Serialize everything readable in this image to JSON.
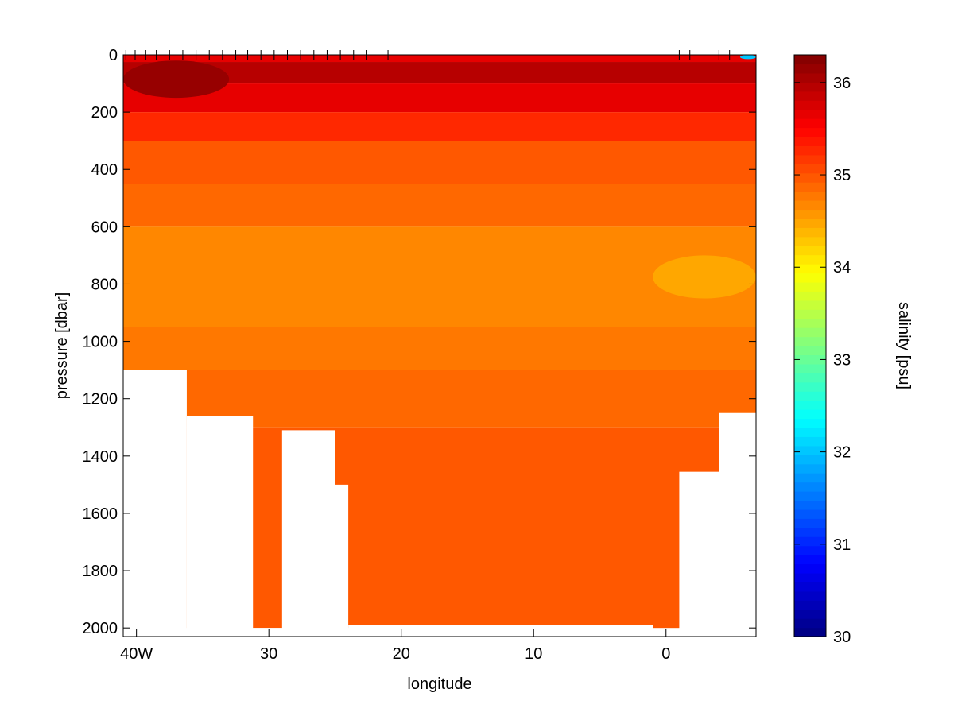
{
  "chart_data": {
    "type": "heatmap",
    "xlabel": "longitude",
    "ylabel": "pressure [dbar]",
    "colorbar_label": "salinity [psu]",
    "x_axis": {
      "range_lon_east": [
        -41.0,
        6.8
      ],
      "ticks": [
        {
          "value": -40,
          "label": "40W"
        },
        {
          "value": -30,
          "label": "30"
        },
        {
          "value": -20,
          "label": "20"
        },
        {
          "value": -10,
          "label": "10"
        },
        {
          "value": 0,
          "label": "0"
        }
      ]
    },
    "y_axis": {
      "range": [
        0,
        2030
      ],
      "reversed": true,
      "ticks": [
        {
          "value": 0,
          "label": "0"
        },
        {
          "value": 200,
          "label": "200"
        },
        {
          "value": 400,
          "label": "400"
        },
        {
          "value": 600,
          "label": "600"
        },
        {
          "value": 800,
          "label": "800"
        },
        {
          "value": 1000,
          "label": "1000"
        },
        {
          "value": 1200,
          "label": "1200"
        },
        {
          "value": 1400,
          "label": "1400"
        },
        {
          "value": 1600,
          "label": "1600"
        },
        {
          "value": 1800,
          "label": "1800"
        },
        {
          "value": 2000,
          "label": "2000"
        }
      ]
    },
    "colorbar": {
      "range": [
        30,
        36.3
      ],
      "colormap": "jet",
      "levels": 64,
      "ticks": [
        {
          "value": 30,
          "label": "30"
        },
        {
          "value": 31,
          "label": "31"
        },
        {
          "value": 32,
          "label": "32"
        },
        {
          "value": 33,
          "label": "33"
        },
        {
          "value": 34,
          "label": "34"
        },
        {
          "value": 35,
          "label": "35"
        },
        {
          "value": 36,
          "label": "36"
        }
      ]
    },
    "station_longitudes": [
      -40.8,
      -40.1,
      -39.3,
      -38.5,
      -37.5,
      -36.5,
      -35.5,
      -34.5,
      -33.5,
      -32.5,
      -31.6,
      -30.6,
      -29.6,
      -28.6,
      -27.6,
      -26.6,
      -25.6,
      -24.6,
      -23.6,
      -22.6,
      -21.0,
      1.0,
      1.8,
      4.0,
      4.8
    ],
    "salinity_layers": [
      {
        "p_top": 0,
        "p_bottom": 25,
        "salinity": 35.7
      },
      {
        "p_top": 25,
        "p_bottom": 100,
        "salinity": 36.0
      },
      {
        "p_top": 100,
        "p_bottom": 200,
        "salinity": 35.7
      },
      {
        "p_top": 200,
        "p_bottom": 300,
        "salinity": 35.3
      },
      {
        "p_top": 300,
        "p_bottom": 450,
        "salinity": 35.0
      },
      {
        "p_top": 450,
        "p_bottom": 600,
        "salinity": 34.85
      },
      {
        "p_top": 600,
        "p_bottom": 800,
        "salinity": 34.7
      },
      {
        "p_top": 800,
        "p_bottom": 950,
        "salinity": 34.7
      },
      {
        "p_top": 950,
        "p_bottom": 1100,
        "salinity": 34.8
      },
      {
        "p_top": 1100,
        "p_bottom": 1300,
        "salinity": 34.9
      },
      {
        "p_top": 1300,
        "p_bottom": 2000,
        "salinity": 34.95
      }
    ],
    "local_features": [
      {
        "name": "surface high salinity core",
        "lon_range": [
          -41,
          -33
        ],
        "p_range": [
          20,
          150
        ],
        "salinity": 36.2
      },
      {
        "name": "low salinity lens east",
        "lon_range": [
          -1,
          6.8
        ],
        "p_range": [
          700,
          850
        ],
        "salinity": 34.5
      },
      {
        "name": "fresh surface patch",
        "lon_range": [
          5.6,
          6.8
        ],
        "p_range": [
          0,
          15
        ],
        "salinity": 32.0
      }
    ],
    "data_coverage_bottom": [
      {
        "lon_range": [
          -41.0,
          -36.2
        ],
        "max_p": 1100
      },
      {
        "lon_range": [
          -36.2,
          -31.2
        ],
        "max_p": 1260
      },
      {
        "lon_range": [
          -31.2,
          -29.0
        ],
        "max_p": 2000
      },
      {
        "lon_range": [
          -29.0,
          -25.0
        ],
        "max_p": 1310
      },
      {
        "lon_range": [
          -25.0,
          -24.0
        ],
        "max_p": 1500
      },
      {
        "lon_range": [
          -24.0,
          -1.0
        ],
        "max_p": 1990
      },
      {
        "lon_range": [
          -1.0,
          1.0
        ],
        "max_p": 2005
      },
      {
        "lon_range": [
          1.0,
          4.0
        ],
        "max_p": 1455
      },
      {
        "lon_range": [
          4.0,
          6.8
        ],
        "max_p": 1250
      }
    ]
  }
}
